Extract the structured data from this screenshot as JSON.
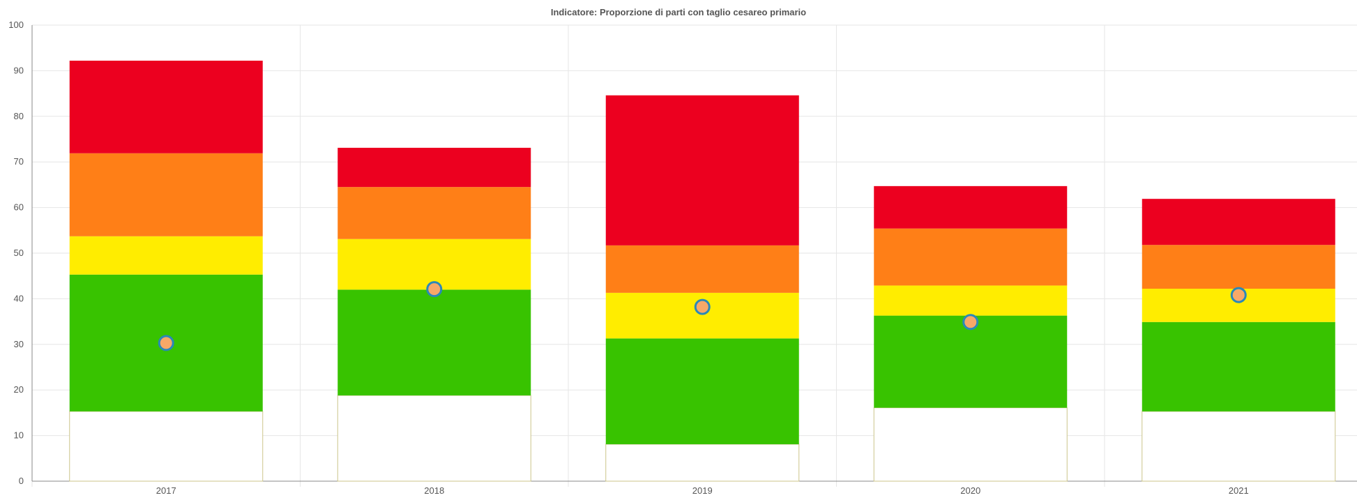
{
  "chart_data": {
    "type": "bar",
    "title": "Indicatore: Proporzione di parti con taglio cesareo primario",
    "xlabel": "",
    "ylabel": "",
    "categories": [
      "2017",
      "2018",
      "2019",
      "2020",
      "2021"
    ],
    "ylim": [
      0,
      100
    ],
    "yticks": [
      0,
      10,
      20,
      30,
      40,
      50,
      60,
      70,
      80,
      90,
      100
    ],
    "grid": true,
    "stacked": true,
    "bands": [
      {
        "color": "#ffffff",
        "values": [
          15.3,
          18.8,
          8.1,
          16.1,
          15.3
        ]
      },
      {
        "color": "#38c300",
        "values": [
          30.0,
          23.2,
          23.2,
          20.2,
          19.6
        ]
      },
      {
        "color": "#ffed00",
        "values": [
          8.4,
          11.1,
          10.0,
          6.6,
          7.3
        ]
      },
      {
        "color": "#ff7f17",
        "values": [
          18.2,
          11.4,
          10.4,
          12.5,
          9.6
        ]
      },
      {
        "color": "#ec001f",
        "values": [
          20.3,
          8.6,
          32.9,
          9.3,
          10.1
        ]
      }
    ],
    "points": {
      "fill": "#f7a868",
      "stroke": "#2b88b8",
      "values": [
        30.3,
        42.1,
        38.2,
        34.9,
        40.8
      ]
    }
  },
  "colors": {
    "grid": "#e6e6e6",
    "axis": "#888888",
    "tick_label": "#555555",
    "bar_border": "#ccc58a"
  }
}
